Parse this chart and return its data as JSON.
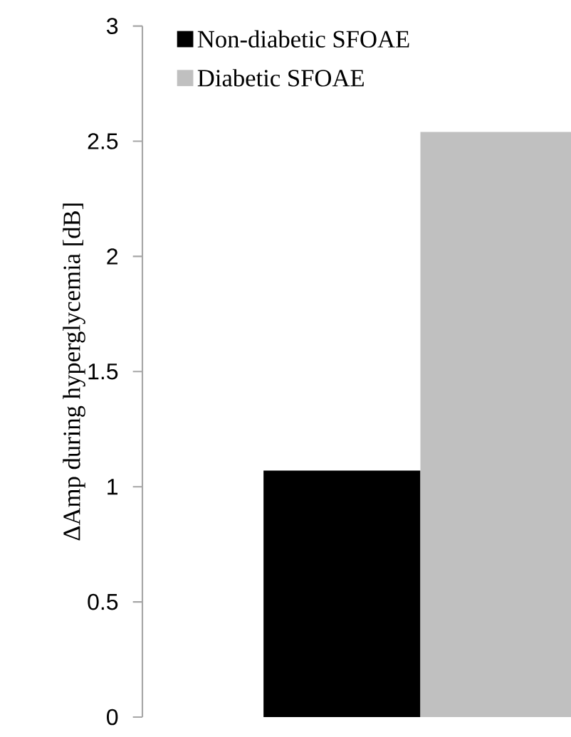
{
  "chart_data": {
    "type": "bar",
    "ylabel": "ΔAmp during hyperglycemia [dB]",
    "categories": [
      null
    ],
    "series": [
      {
        "name": "Non-diabetic SFOAE",
        "color": "#000000",
        "values": [
          1.07
        ]
      },
      {
        "name": "Diabetic SFOAE",
        "color": "#c0c0c0",
        "values": [
          2.54
        ]
      }
    ],
    "ylim": [
      0,
      3
    ],
    "yticks": [
      0,
      0.5,
      1,
      1.5,
      2,
      2.5,
      3
    ],
    "grid": false,
    "legend": "top left"
  }
}
